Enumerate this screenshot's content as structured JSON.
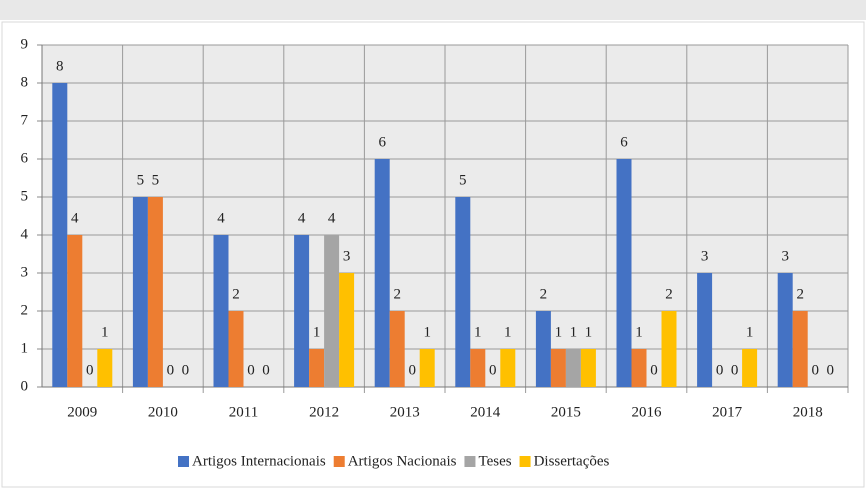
{
  "chart_data": {
    "type": "bar",
    "categories": [
      "2009",
      "2010",
      "2011",
      "2012",
      "2013",
      "2014",
      "2015",
      "2016",
      "2017",
      "2018"
    ],
    "series": [
      {
        "name": "Artigos Internacionais",
        "color": "#4472c4",
        "values": [
          8,
          5,
          4,
          4,
          6,
          5,
          2,
          6,
          3,
          3
        ]
      },
      {
        "name": "Artigos Nacionais",
        "color": "#ed7d31",
        "values": [
          4,
          5,
          2,
          1,
          2,
          1,
          1,
          1,
          0,
          2
        ]
      },
      {
        "name": "Teses",
        "color": "#a5a5a5",
        "values": [
          0,
          0,
          0,
          4,
          0,
          0,
          1,
          0,
          0,
          0
        ]
      },
      {
        "name": "Dissertações",
        "color": "#ffc000",
        "values": [
          1,
          0,
          0,
          3,
          1,
          1,
          1,
          2,
          1,
          0
        ]
      }
    ],
    "ylim": [
      0,
      9
    ],
    "yticks": [
      0,
      1,
      2,
      3,
      4,
      5,
      6,
      7,
      8,
      9
    ],
    "grid": true,
    "legend": "bottom"
  }
}
